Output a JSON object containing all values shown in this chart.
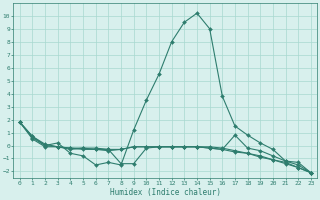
{
  "xlabel": "Humidex (Indice chaleur)",
  "x_values": [
    0,
    1,
    2,
    3,
    4,
    5,
    6,
    7,
    8,
    9,
    10,
    11,
    12,
    13,
    14,
    15,
    16,
    17,
    18,
    19,
    20,
    21,
    22,
    23
  ],
  "series1": [
    1.8,
    0.7,
    0.0,
    0.2,
    -0.6,
    -0.8,
    -1.5,
    -1.3,
    -1.5,
    1.2,
    3.5,
    5.5,
    8.0,
    9.5,
    10.2,
    9.0,
    3.8,
    1.5,
    0.8,
    0.2,
    -0.3,
    -1.2,
    -1.3,
    -2.1
  ],
  "series2": [
    1.8,
    0.7,
    0.1,
    -0.1,
    -0.3,
    -0.2,
    -0.2,
    -0.3,
    -1.4,
    -1.4,
    -0.2,
    -0.1,
    -0.1,
    -0.1,
    -0.1,
    -0.2,
    -0.3,
    0.8,
    -0.2,
    -0.4,
    -0.8,
    -1.2,
    -1.5,
    -2.1
  ],
  "series3": [
    1.8,
    0.5,
    -0.1,
    -0.1,
    -0.2,
    -0.2,
    -0.3,
    -0.4,
    -0.3,
    -0.1,
    -0.1,
    -0.1,
    -0.1,
    -0.1,
    -0.1,
    -0.2,
    -0.3,
    -0.5,
    -0.6,
    -0.8,
    -1.1,
    -1.3,
    -1.7,
    -2.1
  ],
  "series4": [
    1.8,
    0.6,
    0.0,
    -0.1,
    -0.2,
    -0.3,
    -0.3,
    -0.3,
    -0.3,
    -0.1,
    -0.1,
    -0.1,
    -0.1,
    -0.1,
    -0.1,
    -0.1,
    -0.2,
    -0.4,
    -0.6,
    -0.9,
    -1.1,
    -1.4,
    -1.7,
    -2.1
  ],
  "line_color": "#2e7d6e",
  "bg_color": "#d8f0ed",
  "grid_color": "#a8d8d0",
  "ylim": [
    -2.5,
    11
  ],
  "xlim": [
    -0.5,
    23.5
  ],
  "yticks": [
    -2,
    -1,
    0,
    1,
    2,
    3,
    4,
    5,
    6,
    7,
    8,
    9,
    10
  ],
  "xticks": [
    0,
    1,
    2,
    3,
    4,
    5,
    6,
    7,
    8,
    9,
    10,
    11,
    12,
    13,
    14,
    15,
    16,
    17,
    18,
    19,
    20,
    21,
    22,
    23
  ],
  "tick_fontsize": 4.5,
  "xlabel_fontsize": 5.5,
  "marker_size": 2.0,
  "line_width": 0.8
}
